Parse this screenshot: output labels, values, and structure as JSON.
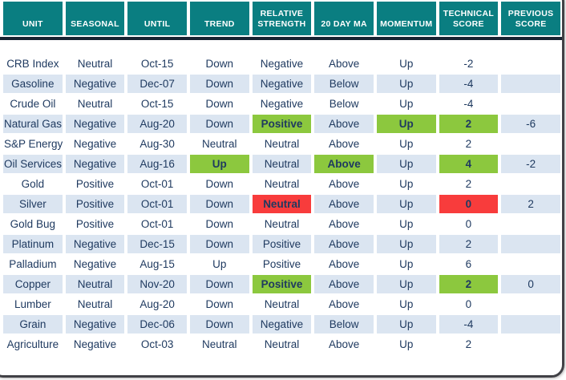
{
  "colors": {
    "header_bg": "#0a7e81",
    "header_text": "#ffffff",
    "stripe": "#dbe5f1",
    "body_text": "#1f3a60",
    "divider": "#192433",
    "highlight_green": "#8cc83e",
    "highlight_red": "#f83c3c",
    "frame": "#414146",
    "background": "#ffffff"
  },
  "chart_data": {
    "type": "table",
    "columns": [
      {
        "key": "unit",
        "label": "UNIT"
      },
      {
        "key": "seasonal",
        "label": "SEASONAL"
      },
      {
        "key": "until",
        "label": "UNTIL"
      },
      {
        "key": "trend",
        "label": "TREND"
      },
      {
        "key": "relative_strength",
        "label": "RELATIVE STRENGTH"
      },
      {
        "key": "ma20",
        "label": "20 DAY MA"
      },
      {
        "key": "momentum",
        "label": "MOMENTUM"
      },
      {
        "key": "technical_score",
        "label": "TECHNICAL SCORE"
      },
      {
        "key": "previous_score",
        "label": "PREVIOUS SCORE"
      }
    ],
    "rows": [
      {
        "cells": {
          "unit": "CRB Index",
          "seasonal": "Neutral",
          "until": "Oct-15",
          "trend": "Down",
          "relative_strength": "Negative",
          "ma20": "Above",
          "momentum": "Up",
          "technical_score": "-2",
          "previous_score": ""
        },
        "highlights": {}
      },
      {
        "cells": {
          "unit": "Gasoline",
          "seasonal": "Negative",
          "until": "Dec-07",
          "trend": "Down",
          "relative_strength": "Negative",
          "ma20": "Below",
          "momentum": "Up",
          "technical_score": "-4",
          "previous_score": ""
        },
        "highlights": {}
      },
      {
        "cells": {
          "unit": "Crude Oil",
          "seasonal": "Neutral",
          "until": "Oct-15",
          "trend": "Down",
          "relative_strength": "Negative",
          "ma20": "Below",
          "momentum": "Up",
          "technical_score": "-4",
          "previous_score": ""
        },
        "highlights": {}
      },
      {
        "cells": {
          "unit": "Natural Gas",
          "seasonal": "Negative",
          "until": "Aug-20",
          "trend": "Down",
          "relative_strength": "Positive",
          "ma20": "Above",
          "momentum": "Up",
          "technical_score": "2",
          "previous_score": "-6"
        },
        "highlights": {
          "relative_strength": "green",
          "momentum": "green",
          "technical_score": "green"
        }
      },
      {
        "cells": {
          "unit": "S&P Energy",
          "seasonal": "Negative",
          "until": "Aug-30",
          "trend": "Neutral",
          "relative_strength": "Neutral",
          "ma20": "Above",
          "momentum": "Up",
          "technical_score": "2",
          "previous_score": ""
        },
        "highlights": {}
      },
      {
        "cells": {
          "unit": "Oil Services",
          "seasonal": "Negative",
          "until": "Aug-16",
          "trend": "Up",
          "relative_strength": "Neutral",
          "ma20": "Above",
          "momentum": "Up",
          "technical_score": "4",
          "previous_score": "-2"
        },
        "highlights": {
          "trend": "green",
          "ma20": "green",
          "technical_score": "green"
        }
      },
      {
        "cells": {
          "unit": "Gold",
          "seasonal": "Positive",
          "until": "Oct-01",
          "trend": "Down",
          "relative_strength": "Neutral",
          "ma20": "Above",
          "momentum": "Up",
          "technical_score": "2",
          "previous_score": ""
        },
        "highlights": {}
      },
      {
        "cells": {
          "unit": "Silver",
          "seasonal": "Positive",
          "until": "Oct-01",
          "trend": "Down",
          "relative_strength": "Neutral",
          "ma20": "Above",
          "momentum": "Up",
          "technical_score": "0",
          "previous_score": "2"
        },
        "highlights": {
          "relative_strength": "red",
          "technical_score": "red"
        }
      },
      {
        "cells": {
          "unit": "Gold Bug",
          "seasonal": "Positive",
          "until": "Oct-01",
          "trend": "Down",
          "relative_strength": "Neutral",
          "ma20": "Above",
          "momentum": "Up",
          "technical_score": "0",
          "previous_score": ""
        },
        "highlights": {}
      },
      {
        "cells": {
          "unit": "Platinum",
          "seasonal": "Negative",
          "until": "Dec-15",
          "trend": "Down",
          "relative_strength": "Positive",
          "ma20": "Above",
          "momentum": "Up",
          "technical_score": "2",
          "previous_score": ""
        },
        "highlights": {}
      },
      {
        "cells": {
          "unit": "Palladium",
          "seasonal": "Negative",
          "until": "Aug-15",
          "trend": "Up",
          "relative_strength": "Positive",
          "ma20": "Above",
          "momentum": "Up",
          "technical_score": "6",
          "previous_score": ""
        },
        "highlights": {}
      },
      {
        "cells": {
          "unit": "Copper",
          "seasonal": "Neutral",
          "until": "Nov-20",
          "trend": "Down",
          "relative_strength": "Positive",
          "ma20": "Above",
          "momentum": "Up",
          "technical_score": "2",
          "previous_score": "0"
        },
        "highlights": {
          "relative_strength": "green",
          "technical_score": "green"
        }
      },
      {
        "cells": {
          "unit": "Lumber",
          "seasonal": "Neutral",
          "until": "Aug-20",
          "trend": "Down",
          "relative_strength": "Neutral",
          "ma20": "Above",
          "momentum": "Up",
          "technical_score": "0",
          "previous_score": ""
        },
        "highlights": {}
      },
      {
        "cells": {
          "unit": "Grain",
          "seasonal": "Negative",
          "until": "Dec-06",
          "trend": "Down",
          "relative_strength": "Negative",
          "ma20": "Below",
          "momentum": "Up",
          "technical_score": "-4",
          "previous_score": ""
        },
        "highlights": {}
      },
      {
        "cells": {
          "unit": "Agriculture",
          "seasonal": "Negative",
          "until": "Oct-03",
          "trend": "Neutral",
          "relative_strength": "Neutral",
          "ma20": "Above",
          "momentum": "Up",
          "technical_score": "2",
          "previous_score": ""
        },
        "highlights": {}
      }
    ]
  }
}
